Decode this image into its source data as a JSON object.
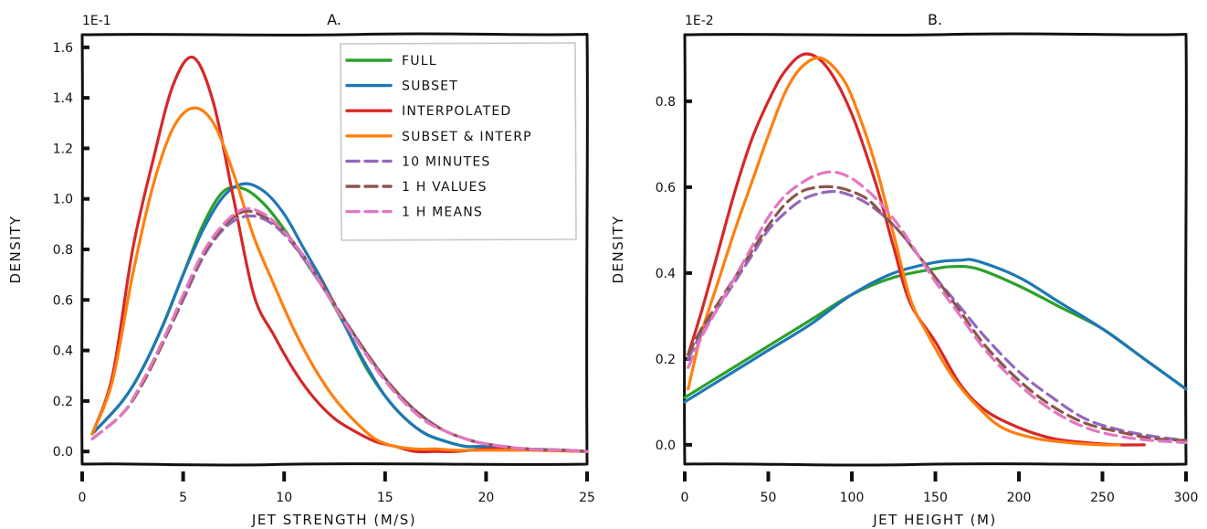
{
  "chart_data": [
    {
      "type": "line",
      "title": "A.",
      "xlabel": "JET STRENGTH (M/S)",
      "ylabel": "DENSITY",
      "y_offset_label": "1E-1",
      "xlim": [
        0,
        25
      ],
      "ylim": [
        -0.05,
        1.65
      ],
      "xticks": [
        0,
        5,
        10,
        15,
        20,
        25
      ],
      "xtick_labels": [
        "0",
        "5",
        "10",
        "15",
        "20",
        "25"
      ],
      "yticks": [
        0.0,
        0.2,
        0.4,
        0.6,
        0.8,
        1.0,
        1.2,
        1.4,
        1.6
      ],
      "ytick_labels": [
        "0.0",
        "0.2",
        "0.4",
        "0.6",
        "0.8",
        "1.0",
        "1.2",
        "1.4",
        "1.6"
      ],
      "grid": false,
      "legend_position": "top-right",
      "series": [
        {
          "name": "FULL",
          "color": "#2ca02c",
          "dashed": false,
          "x": [
            0.5,
            2,
            3,
            4,
            5,
            6,
            7,
            8,
            9,
            10,
            11,
            12,
            13,
            14,
            15,
            16,
            17,
            18,
            19,
            20,
            22,
            24,
            25
          ],
          "y": [
            0.07,
            0.2,
            0.33,
            0.5,
            0.7,
            0.9,
            1.03,
            1.04,
            0.98,
            0.88,
            0.76,
            0.64,
            0.5,
            0.34,
            0.22,
            0.13,
            0.07,
            0.04,
            0.02,
            0.02,
            0.01,
            0.005,
            0.0
          ]
        },
        {
          "name": "SUBSET",
          "color": "#1f77b4",
          "dashed": false,
          "x": [
            0.5,
            2,
            3,
            4,
            5,
            6,
            7,
            8,
            9,
            10,
            11,
            12,
            13,
            14,
            15,
            16,
            17,
            18,
            19,
            20,
            22,
            24,
            25
          ],
          "y": [
            0.07,
            0.2,
            0.33,
            0.5,
            0.7,
            0.88,
            1.01,
            1.06,
            1.03,
            0.94,
            0.8,
            0.66,
            0.5,
            0.35,
            0.22,
            0.13,
            0.07,
            0.04,
            0.02,
            0.02,
            0.01,
            0.005,
            0.0
          ]
        },
        {
          "name": "INTERPOLATED",
          "color": "#d62728",
          "dashed": false,
          "x": [
            0.5,
            1.5,
            2.5,
            3.5,
            4.5,
            5.5,
            6.5,
            7.5,
            8.5,
            9.5,
            10.5,
            11.5,
            12.5,
            13.5,
            14.5,
            15.5,
            16.5,
            17.5,
            18.5,
            20,
            21,
            23,
            25
          ],
          "y": [
            0.07,
            0.3,
            0.8,
            1.15,
            1.45,
            1.56,
            1.38,
            1.0,
            0.62,
            0.46,
            0.32,
            0.21,
            0.13,
            0.08,
            0.04,
            0.02,
            0.0,
            0.0,
            0.0,
            0.01,
            0.01,
            0.005,
            0.0
          ]
        },
        {
          "name": "SUBSET & INTERP",
          "color": "#ff7f0e",
          "dashed": false,
          "x": [
            0.5,
            1.5,
            2.5,
            3.5,
            4.5,
            5.5,
            6.5,
            7.5,
            8.5,
            9.5,
            10.5,
            11.5,
            12.5,
            13.5,
            14.5,
            15.5,
            16.5,
            17.5,
            18.5,
            20,
            22,
            25
          ],
          "y": [
            0.07,
            0.28,
            0.7,
            1.05,
            1.28,
            1.36,
            1.3,
            1.1,
            0.85,
            0.66,
            0.48,
            0.33,
            0.21,
            0.12,
            0.05,
            0.02,
            0.01,
            0.01,
            0.005,
            0.005,
            0.005,
            0.0
          ]
        },
        {
          "name": "10 MINUTES",
          "color": "#9467bd",
          "dashed": true,
          "x": [
            0.5,
            2,
            3,
            4,
            5,
            6,
            7,
            8,
            9,
            10,
            11,
            12,
            13,
            14,
            15,
            16,
            17,
            18,
            19,
            20,
            22,
            24,
            25
          ],
          "y": [
            0.05,
            0.15,
            0.27,
            0.43,
            0.6,
            0.77,
            0.88,
            0.93,
            0.92,
            0.86,
            0.76,
            0.64,
            0.52,
            0.4,
            0.29,
            0.2,
            0.13,
            0.08,
            0.05,
            0.03,
            0.01,
            0.005,
            0.0
          ]
        },
        {
          "name": "1 H VALUES",
          "color": "#8c564b",
          "dashed": true,
          "x": [
            0.5,
            2,
            3,
            4,
            5,
            6,
            7,
            8,
            9,
            10,
            11,
            12,
            13,
            14,
            15,
            16,
            17,
            18,
            19,
            20,
            22,
            24,
            25
          ],
          "y": [
            0.05,
            0.15,
            0.27,
            0.43,
            0.61,
            0.78,
            0.89,
            0.95,
            0.93,
            0.87,
            0.77,
            0.65,
            0.52,
            0.4,
            0.29,
            0.2,
            0.13,
            0.08,
            0.05,
            0.03,
            0.01,
            0.005,
            0.0
          ]
        },
        {
          "name": "1 H MEANS",
          "color": "#e377c2",
          "dashed": true,
          "x": [
            0.5,
            2,
            3,
            4,
            5,
            6,
            7,
            8,
            9,
            10,
            11,
            12,
            13,
            14,
            15,
            16,
            17,
            18,
            19,
            20,
            22,
            24,
            25
          ],
          "y": [
            0.05,
            0.15,
            0.28,
            0.44,
            0.62,
            0.79,
            0.9,
            0.96,
            0.94,
            0.87,
            0.77,
            0.64,
            0.51,
            0.39,
            0.28,
            0.19,
            0.12,
            0.08,
            0.05,
            0.03,
            0.01,
            0.005,
            0.0
          ]
        }
      ]
    },
    {
      "type": "line",
      "title": "B.",
      "xlabel": "JET HEIGHT (M)",
      "ylabel": "DENSITY",
      "y_offset_label": "1E-2",
      "xlim": [
        0,
        300
      ],
      "ylim": [
        -0.045,
        0.955
      ],
      "xticks": [
        0,
        50,
        100,
        150,
        200,
        250,
        300
      ],
      "xtick_labels": [
        "0",
        "50",
        "100",
        "150",
        "200",
        "250",
        "300"
      ],
      "yticks": [
        0.0,
        0.2,
        0.4,
        0.6,
        0.8
      ],
      "ytick_labels": [
        "0.0",
        "0.2",
        "0.4",
        "0.6",
        "0.8"
      ],
      "grid": false,
      "series": [
        {
          "name": "FULL",
          "color": "#2ca02c",
          "dashed": false,
          "x": [
            0,
            25,
            50,
            75,
            100,
            125,
            150,
            160,
            175,
            200,
            225,
            250,
            275,
            300
          ],
          "y": [
            0.11,
            0.17,
            0.23,
            0.29,
            0.35,
            0.39,
            0.41,
            0.415,
            0.41,
            0.37,
            0.32,
            0.27,
            0.2,
            0.13
          ]
        },
        {
          "name": "SUBSET",
          "color": "#1f77b4",
          "dashed": false,
          "x": [
            0,
            25,
            50,
            75,
            100,
            125,
            150,
            165,
            175,
            200,
            225,
            250,
            275,
            300
          ],
          "y": [
            0.1,
            0.16,
            0.22,
            0.28,
            0.35,
            0.4,
            0.425,
            0.43,
            0.428,
            0.39,
            0.33,
            0.27,
            0.2,
            0.13
          ]
        },
        {
          "name": "INTERPOLATED",
          "color": "#d62728",
          "dashed": false,
          "x": [
            2,
            10,
            20,
            30,
            40,
            50,
            60,
            72,
            85,
            100,
            115,
            125,
            135,
            150,
            165,
            180,
            200,
            220,
            240,
            260,
            275
          ],
          "y": [
            0.21,
            0.31,
            0.45,
            0.59,
            0.71,
            0.8,
            0.87,
            0.91,
            0.88,
            0.77,
            0.6,
            0.46,
            0.33,
            0.24,
            0.14,
            0.08,
            0.04,
            0.015,
            0.005,
            0.0,
            0.0
          ]
        },
        {
          "name": "SUBSET & INTERP",
          "color": "#ff7f0e",
          "dashed": false,
          "x": [
            2,
            10,
            20,
            30,
            40,
            50,
            60,
            70,
            82,
            95,
            105,
            115,
            125,
            135,
            145,
            160,
            175,
            190,
            210,
            230,
            250,
            260
          ],
          "y": [
            0.13,
            0.26,
            0.38,
            0.5,
            0.61,
            0.72,
            0.82,
            0.88,
            0.9,
            0.85,
            0.76,
            0.64,
            0.49,
            0.34,
            0.26,
            0.16,
            0.09,
            0.04,
            0.015,
            0.005,
            0.0,
            0.0
          ]
        },
        {
          "name": "10 MINUTES",
          "color": "#9467bd",
          "dashed": true,
          "x": [
            2,
            10,
            20,
            30,
            40,
            50,
            60,
            70,
            80,
            90,
            100,
            110,
            120,
            130,
            140,
            150,
            165,
            180,
            200,
            220,
            240,
            260,
            280,
            300
          ],
          "y": [
            0.2,
            0.26,
            0.32,
            0.38,
            0.44,
            0.5,
            0.54,
            0.57,
            0.585,
            0.59,
            0.58,
            0.56,
            0.53,
            0.49,
            0.44,
            0.39,
            0.32,
            0.25,
            0.17,
            0.11,
            0.06,
            0.035,
            0.02,
            0.01
          ]
        },
        {
          "name": "1 H VALUES",
          "color": "#8c564b",
          "dashed": true,
          "x": [
            2,
            10,
            20,
            30,
            40,
            50,
            60,
            70,
            80,
            90,
            100,
            110,
            120,
            130,
            140,
            150,
            165,
            180,
            200,
            220,
            240,
            260,
            280,
            300
          ],
          "y": [
            0.21,
            0.27,
            0.33,
            0.39,
            0.45,
            0.51,
            0.56,
            0.59,
            0.6,
            0.6,
            0.59,
            0.57,
            0.53,
            0.49,
            0.44,
            0.39,
            0.31,
            0.23,
            0.15,
            0.09,
            0.05,
            0.03,
            0.015,
            0.01
          ]
        },
        {
          "name": "1 H MEANS",
          "color": "#e377c2",
          "dashed": true,
          "x": [
            2,
            10,
            20,
            30,
            40,
            50,
            60,
            70,
            80,
            90,
            100,
            110,
            120,
            130,
            140,
            150,
            165,
            180,
            200,
            220,
            240,
            260,
            280,
            300
          ],
          "y": [
            0.18,
            0.25,
            0.32,
            0.39,
            0.46,
            0.53,
            0.58,
            0.61,
            0.63,
            0.635,
            0.62,
            0.59,
            0.55,
            0.5,
            0.44,
            0.38,
            0.3,
            0.22,
            0.14,
            0.08,
            0.04,
            0.02,
            0.01,
            0.005
          ]
        }
      ]
    }
  ]
}
